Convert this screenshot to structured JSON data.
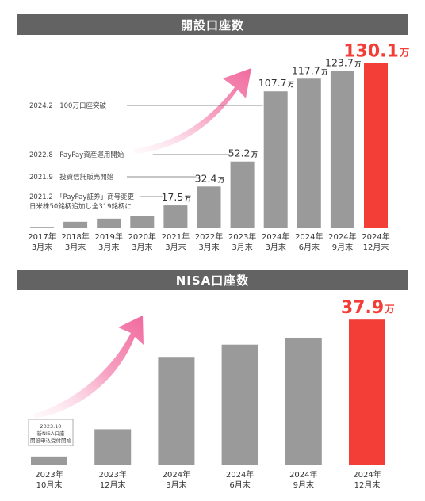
{
  "charts": [
    {
      "title": "開設口座数",
      "chart_data": {
        "type": "bar",
        "categories": [
          [
            "2017年",
            "3月末"
          ],
          [
            "2018年",
            "3月末"
          ],
          [
            "2019年",
            "3月末"
          ],
          [
            "2020年",
            "3月末"
          ],
          [
            "2021年",
            "3月末"
          ],
          [
            "2022年",
            "3月末"
          ],
          [
            "2023年",
            "3月末"
          ],
          [
            "2024年",
            "3月末"
          ],
          [
            "2024年",
            "6月末"
          ],
          [
            "2024年",
            "9月末"
          ],
          [
            "2024年",
            "12月末"
          ]
        ],
        "values": [
          0.5,
          4.5,
          7,
          9,
          17.5,
          32.4,
          52.2,
          107.7,
          117.7,
          123.7,
          130.1
        ],
        "labels": [
          null,
          null,
          null,
          null,
          "17.5",
          "32.4",
          "52.2",
          "107.7",
          "117.7",
          "123.7",
          "130.1"
        ],
        "unit": "万",
        "highlight_index": 10,
        "bar_color": "#9a9a9a",
        "highlight_color": "#f23e36",
        "annotations": [
          {
            "lines": [
              "2024.2　100万口座突破"
            ],
            "bar_index": 7
          },
          {
            "lines": [
              "2022.8　PayPay資産運用開始"
            ],
            "bar_index": 6
          },
          {
            "lines": [
              "2021.9　投資信託販売開始"
            ],
            "bar_index": 5
          },
          {
            "lines": [
              "2021.2　「PayPay証券」商号変更",
              "日米株50銘柄追加し全319銘柄に"
            ],
            "bar_index": 4
          }
        ]
      }
    },
    {
      "title": "NISA口座数",
      "chart_data": {
        "type": "bar",
        "categories": [
          [
            "2023年",
            "10月末"
          ],
          [
            "2023年",
            "12月末"
          ],
          [
            "2024年",
            "3月末"
          ],
          [
            "2024年",
            "6月末"
          ],
          [
            "2024年",
            "9月末"
          ],
          [
            "2024年",
            "12月末"
          ]
        ],
        "values": [
          2.3,
          9.4,
          28.2,
          31.4,
          33.2,
          37.9
        ],
        "labels": [
          null,
          null,
          null,
          null,
          null,
          "37.9"
        ],
        "unit": "万",
        "highlight_index": 5,
        "bar_color": "#9a9a9a",
        "highlight_color": "#f23e36",
        "annotations": [
          {
            "lines": [
              "2023.10",
              "新NISA口座",
              "開設申込受付開始"
            ],
            "bar_index": 0
          }
        ]
      }
    }
  ]
}
